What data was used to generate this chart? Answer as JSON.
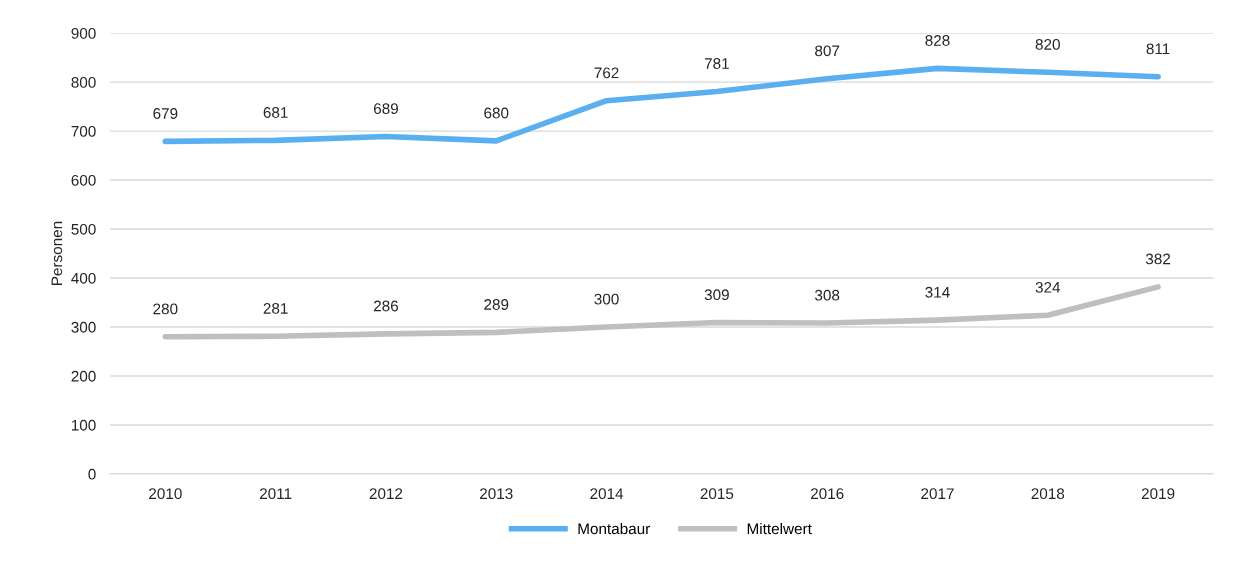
{
  "chart_data": {
    "type": "line",
    "categories": [
      "2010",
      "2011",
      "2012",
      "2013",
      "2014",
      "2015",
      "2016",
      "2017",
      "2018",
      "2019"
    ],
    "series": [
      {
        "name": "Montabaur",
        "color": "#5aaff0",
        "values": [
          679,
          681,
          689,
          680,
          762,
          781,
          807,
          828,
          820,
          811
        ]
      },
      {
        "name": "Mittelwert",
        "color": "#bfbfbf",
        "values": [
          280,
          281,
          286,
          289,
          300,
          309,
          308,
          314,
          324,
          382
        ]
      }
    ],
    "ylabel": "Personen",
    "ylim": [
      0,
      900
    ],
    "yticks": [
      0,
      100,
      200,
      300,
      400,
      500,
      600,
      700,
      800,
      900
    ],
    "grid": "y",
    "legend": "bottom",
    "data_labels": true,
    "marker": "none",
    "line_style": "solid"
  }
}
